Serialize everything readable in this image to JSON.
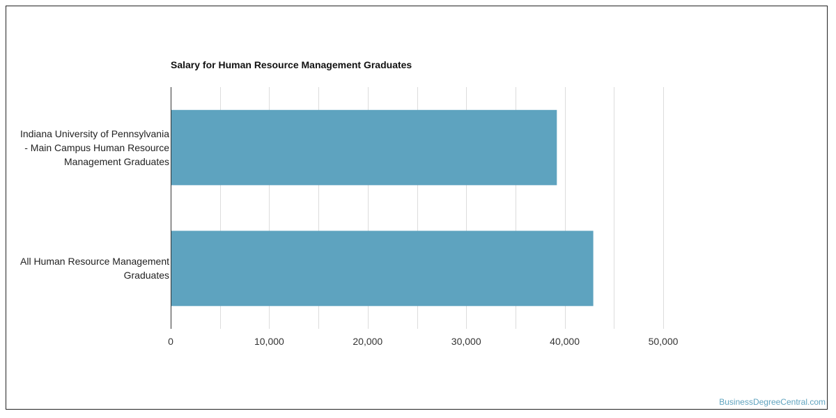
{
  "chart_data": {
    "type": "bar",
    "orientation": "horizontal",
    "title": "Salary for Human Resource Management Graduates",
    "categories": [
      "Indiana University of Pennsylvania - Main Campus Human Resource Management Graduates",
      "All Human Resource Management Graduates"
    ],
    "category_lines": [
      [
        "Indiana University of Pennsylvania",
        "- Main Campus Human Resource",
        "Management Graduates"
      ],
      [
        "All Human Resource Management",
        "Graduates"
      ]
    ],
    "values": [
      39200,
      42900
    ],
    "xlim": [
      0,
      50000
    ],
    "x_ticks": [
      0,
      10000,
      20000,
      30000,
      40000,
      50000
    ],
    "x_tick_labels": [
      "0",
      "10,000",
      "20,000",
      "30,000",
      "40,000",
      "50,000"
    ],
    "xlabel": "",
    "ylabel": "",
    "grid": true,
    "legend": "none",
    "bar_color": "#5ea3bf"
  },
  "credit": "BusinessDegreeCentral.com"
}
